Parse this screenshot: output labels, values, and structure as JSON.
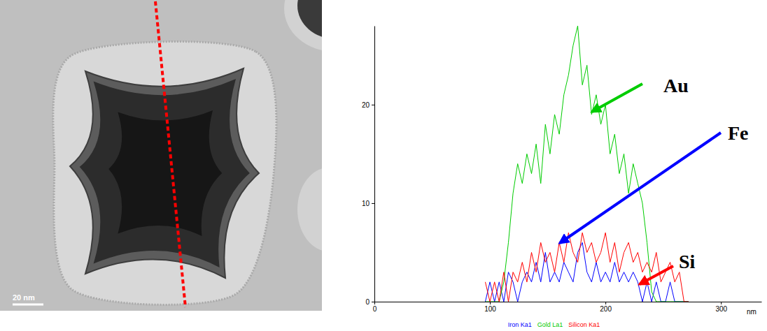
{
  "image": {
    "scale_bar": "20 nm"
  },
  "chart_data": {
    "type": "line",
    "x_label": "nm",
    "x": [
      96,
      100,
      104,
      108,
      112,
      116,
      120,
      124,
      128,
      132,
      136,
      140,
      144,
      148,
      152,
      156,
      160,
      164,
      168,
      172,
      176,
      180,
      184,
      188,
      192,
      196,
      200,
      204,
      208,
      212,
      216,
      220,
      224,
      228,
      232,
      236,
      240,
      244,
      248,
      252,
      256,
      260,
      264,
      268,
      272
    ],
    "series": [
      {
        "name": "Iron Ka1",
        "color": "#0000ff",
        "values": [
          0,
          2,
          0,
          2,
          0,
          3,
          2,
          0,
          2,
          3,
          2,
          4,
          2,
          5,
          2,
          3,
          2,
          4,
          3,
          2,
          5,
          6,
          3,
          2,
          4,
          2,
          3,
          2,
          4,
          2,
          3,
          2,
          3,
          2,
          0,
          2,
          0,
          2,
          0,
          0,
          2,
          0,
          0,
          0,
          0
        ]
      },
      {
        "name": "Gold La1",
        "color": "#00cc00",
        "values": [
          0,
          0,
          0,
          0,
          2,
          6,
          11,
          14,
          12,
          15,
          13,
          16,
          12,
          18,
          15,
          19,
          17,
          21,
          23,
          26,
          28,
          22,
          24,
          19,
          21,
          18,
          20,
          15,
          17,
          13,
          15,
          11,
          14,
          12,
          10,
          6,
          1,
          0,
          0,
          0,
          0,
          0,
          0,
          0,
          0
        ]
      },
      {
        "name": "Silicon Ka1",
        "color": "#ff0000",
        "values": [
          2,
          0,
          2,
          0,
          3,
          0,
          3,
          2,
          4,
          2,
          5,
          3,
          6,
          4,
          5,
          3,
          6,
          4,
          7,
          5,
          4,
          7,
          5,
          6,
          4,
          5,
          7,
          4,
          6,
          3,
          5,
          6,
          4,
          5,
          3,
          4,
          3,
          5,
          2,
          3,
          4,
          2,
          3,
          0,
          0
        ]
      }
    ],
    "xlim": [
      0,
      335
    ],
    "ylim": [
      0,
      28
    ],
    "xticks": [
      0,
      100,
      200,
      300
    ],
    "yticks": [
      0,
      10,
      20
    ],
    "legend": "bottom",
    "annotations": [
      {
        "text": "Au",
        "series": 1
      },
      {
        "text": "Fe",
        "series": 0
      },
      {
        "text": "Si",
        "series": 2
      }
    ]
  }
}
